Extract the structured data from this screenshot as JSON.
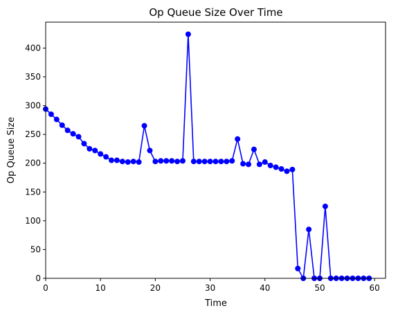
{
  "chart_data": {
    "type": "line",
    "title": "Op Queue Size Over Time",
    "xlabel": "Time",
    "ylabel": "Op Queue Size",
    "xlim": [
      0,
      62
    ],
    "ylim": [
      0,
      445
    ],
    "xticks": [
      0,
      10,
      20,
      30,
      40,
      50,
      60
    ],
    "yticks": [
      0,
      50,
      100,
      150,
      200,
      250,
      300,
      350,
      400
    ],
    "grid": false,
    "series": [
      {
        "color": "#0000ff",
        "marker": "circle",
        "x": [
          0,
          1,
          2,
          3,
          4,
          5,
          6,
          7,
          8,
          9,
          10,
          11,
          12,
          13,
          14,
          15,
          16,
          17,
          18,
          19,
          20,
          21,
          22,
          23,
          24,
          25,
          26,
          27,
          28,
          29,
          30,
          31,
          32,
          33,
          34,
          35,
          36,
          37,
          38,
          39,
          40,
          41,
          42,
          43,
          44,
          45,
          46,
          47,
          48,
          49,
          50,
          51,
          52,
          53,
          54,
          55,
          56,
          57,
          58,
          59
        ],
        "y": [
          294,
          285,
          276,
          266,
          257,
          251,
          246,
          234,
          225,
          222,
          216,
          211,
          205,
          205,
          203,
          202,
          203,
          202,
          265,
          222,
          203,
          204,
          204,
          204,
          203,
          204,
          424,
          203,
          203,
          203,
          203,
          203,
          203,
          203,
          204,
          242,
          199,
          198,
          224,
          198,
          202,
          196,
          193,
          190,
          186,
          189,
          17,
          0,
          85,
          0,
          0,
          125,
          0,
          0,
          0,
          0,
          0,
          0,
          0,
          0
        ]
      }
    ]
  }
}
